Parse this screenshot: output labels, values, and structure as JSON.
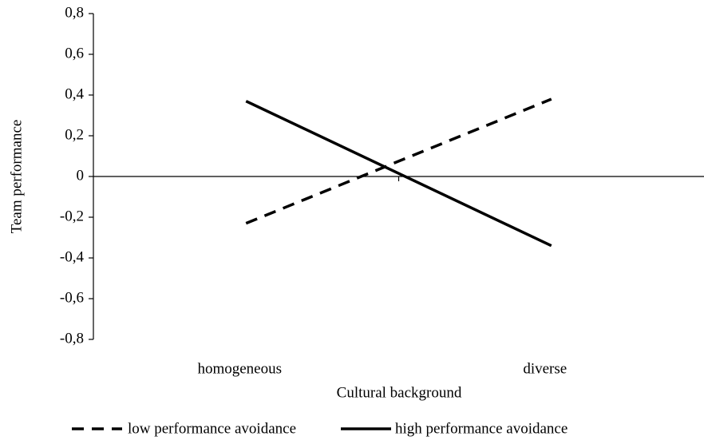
{
  "chart_data": {
    "type": "line",
    "xlabel": "Cultural background",
    "ylabel": "Team performance",
    "categories": [
      "homogeneous",
      "diverse"
    ],
    "series": [
      {
        "name": "low performance avoidance",
        "color": "#000000",
        "dash": true,
        "values": [
          -0.23,
          0.38
        ]
      },
      {
        "name": "high performance avoidance",
        "color": "#000000",
        "dash": false,
        "values": [
          0.37,
          -0.34
        ]
      }
    ],
    "ylim": [
      -0.8,
      0.8
    ],
    "yticks": [
      {
        "value": -0.8,
        "label": "-0,8"
      },
      {
        "value": -0.6,
        "label": "-0,6"
      },
      {
        "value": -0.4,
        "label": "-0,4"
      },
      {
        "value": -0.2,
        "label": "-0,2"
      },
      0,
      {
        "value": 0.2,
        "label": "0,2"
      },
      {
        "value": 0.4,
        "label": "0,4"
      },
      {
        "value": 0.6,
        "label": "0,6"
      },
      {
        "value": 0.8,
        "label": "0,8"
      }
    ],
    "legend": "bottom"
  }
}
